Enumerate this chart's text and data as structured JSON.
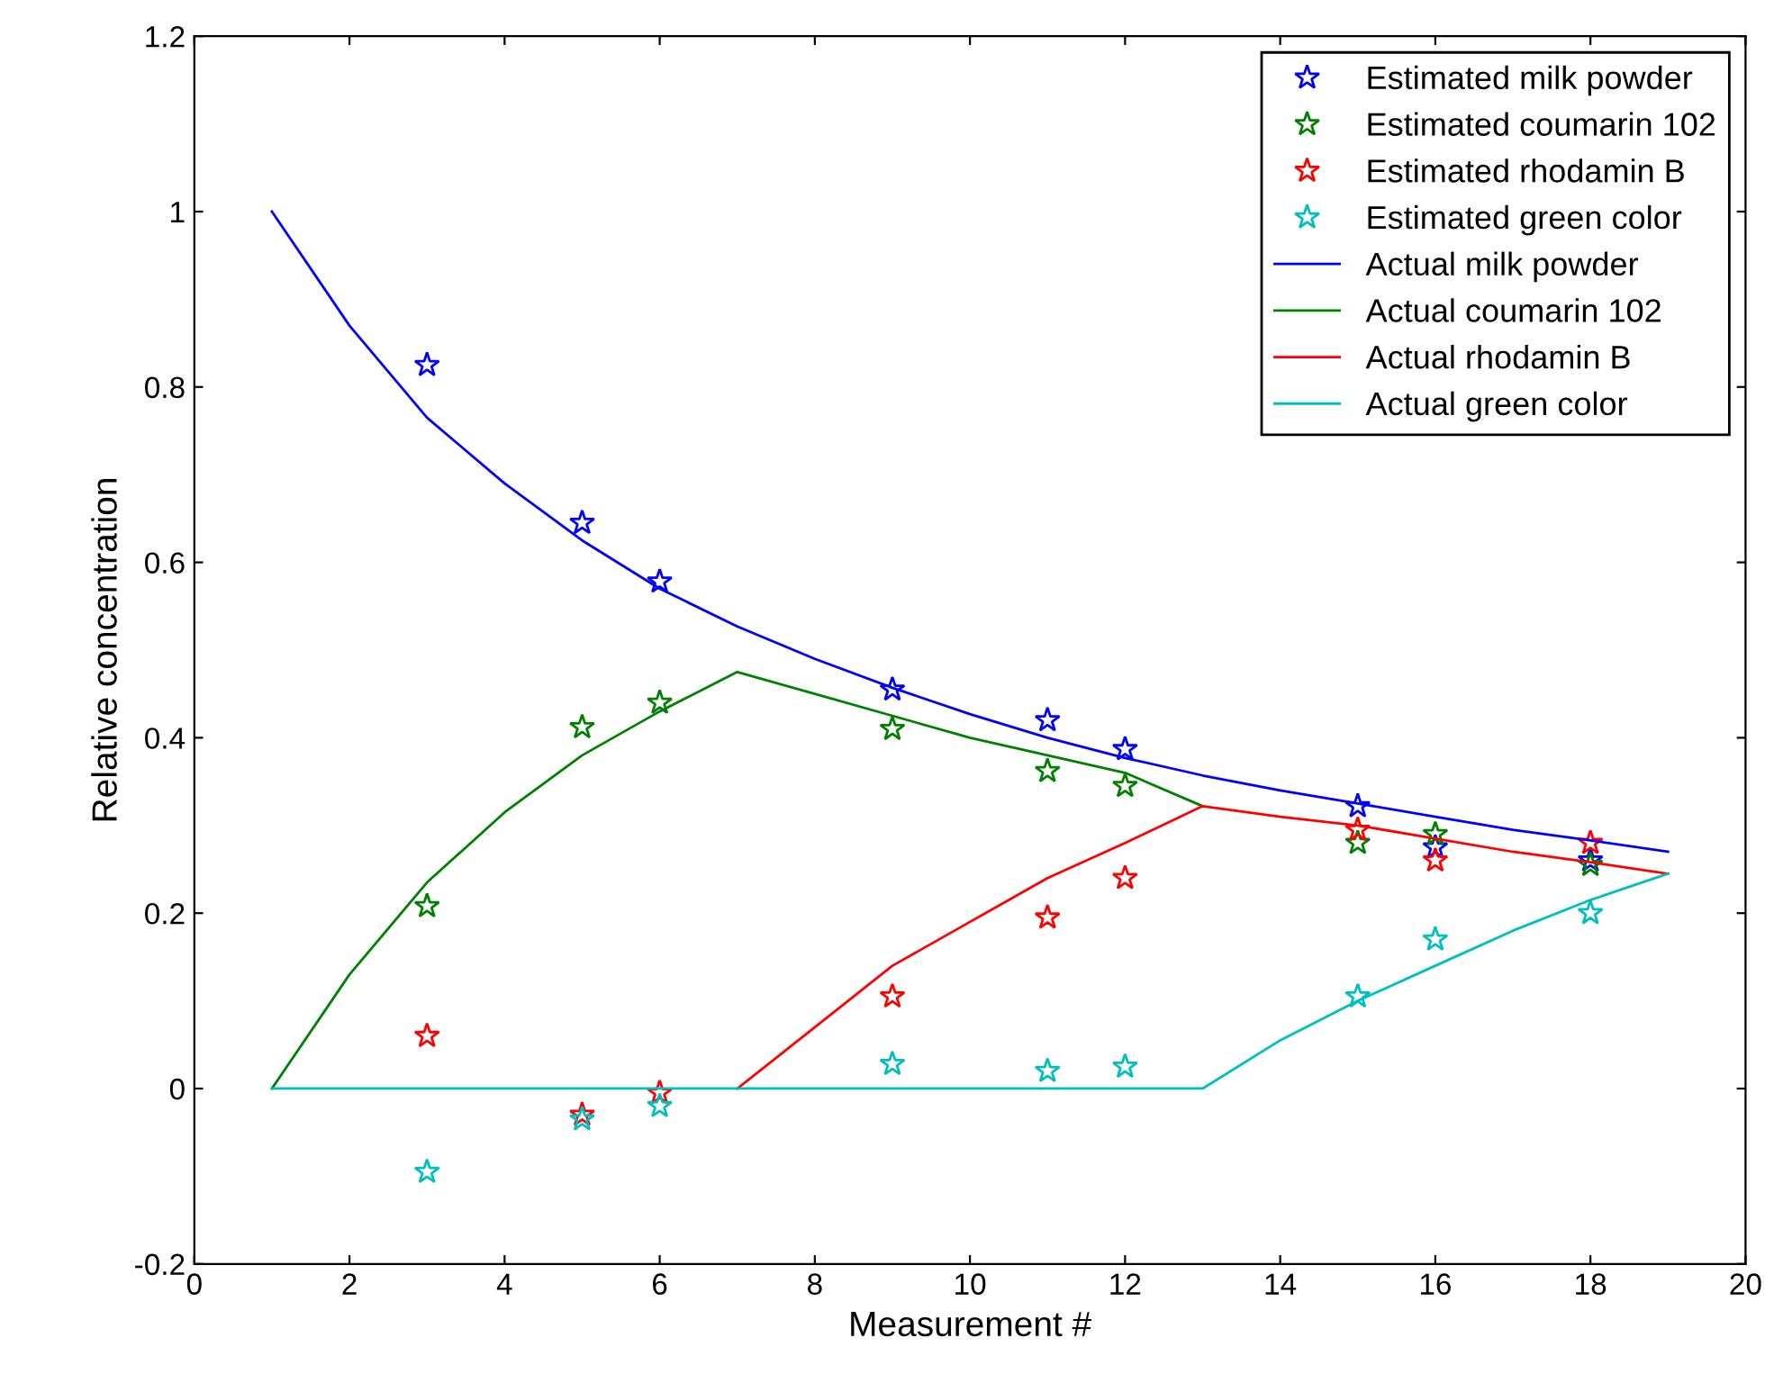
{
  "chart_data": {
    "type": "line",
    "xlabel": "Measurement #",
    "ylabel": "Relative concentration",
    "xlim": [
      0,
      20
    ],
    "ylim": [
      -0.2,
      1.2
    ],
    "xticks": [
      0,
      2,
      4,
      6,
      8,
      10,
      12,
      14,
      16,
      18,
      20
    ],
    "yticks": [
      {
        "value": -0.2,
        "label": "-0.2"
      },
      0,
      0.2,
      0.4,
      0.6,
      0.8,
      1,
      1.2
    ],
    "grid": false,
    "legend": "top right",
    "series": [
      {
        "name": "Estimated milk powder",
        "type": "scatter",
        "marker": "star",
        "color": "#0000ff",
        "x": [
          3,
          5,
          6,
          9,
          11,
          12,
          15,
          16,
          18
        ],
        "values": [
          0.825,
          0.645,
          0.578,
          0.455,
          0.42,
          0.387,
          0.322,
          0.275,
          0.26
        ]
      },
      {
        "name": "Estimated coumarin 102",
        "type": "scatter",
        "marker": "star",
        "color": "#008000",
        "x": [
          3,
          5,
          6,
          9,
          11,
          12,
          15,
          16,
          18
        ],
        "values": [
          0.208,
          0.412,
          0.44,
          0.41,
          0.362,
          0.345,
          0.28,
          0.29,
          0.255
        ]
      },
      {
        "name": "Estimated rhodamin B",
        "type": "scatter",
        "marker": "star",
        "color": "#ff0000",
        "x": [
          3,
          5,
          6,
          9,
          11,
          12,
          15,
          16,
          18
        ],
        "values": [
          0.06,
          -0.03,
          -0.005,
          0.105,
          0.195,
          0.24,
          0.295,
          0.26,
          0.28
        ]
      },
      {
        "name": "Estimated green color",
        "type": "scatter",
        "marker": "star",
        "color": "#00bfbf",
        "x": [
          3,
          5,
          6,
          9,
          11,
          12,
          15,
          16,
          18
        ],
        "values": [
          -0.095,
          -0.035,
          -0.02,
          0.028,
          0.02,
          0.025,
          0.105,
          0.17,
          0.2
        ]
      },
      {
        "name": "Actual milk powder",
        "color": "#0000ff",
        "x": [
          1,
          2,
          3,
          4,
          5,
          6,
          7,
          8,
          9,
          10,
          11,
          12,
          13,
          14,
          15,
          16,
          17,
          18,
          19
        ],
        "values": [
          1,
          0.87,
          0.765,
          0.69,
          0.625,
          0.57,
          0.527,
          0.49,
          0.457,
          0.427,
          0.4,
          0.377,
          0.357,
          0.34,
          0.325,
          0.31,
          0.295,
          0.283,
          0.27
        ]
      },
      {
        "name": "Actual coumarin 102",
        "color": "#008000",
        "x": [
          1,
          2,
          3,
          4,
          5,
          6,
          7,
          8,
          9,
          10,
          11,
          12,
          13
        ],
        "values": [
          0,
          0.13,
          0.235,
          0.315,
          0.38,
          0.43,
          0.475,
          0.45,
          0.425,
          0.4,
          0.38,
          0.36,
          0.322
        ]
      },
      {
        "name": "Actual rhodamin B",
        "color": "#ff0000",
        "x": [
          7,
          8,
          9,
          10,
          11,
          12,
          13,
          14,
          15,
          16,
          17,
          18,
          19
        ],
        "values": [
          0,
          0.07,
          0.14,
          0.19,
          0.24,
          0.28,
          0.322,
          0.31,
          0.3,
          0.285,
          0.27,
          0.258,
          0.245
        ]
      },
      {
        "name": "Actual green color",
        "color": "#00bfbf",
        "x": [
          1,
          2,
          3,
          4,
          5,
          6,
          7,
          8,
          9,
          10,
          11,
          12,
          13,
          14,
          15,
          16,
          17,
          18,
          19
        ],
        "values": [
          0,
          0,
          0,
          0,
          0,
          0,
          0,
          0,
          0,
          0,
          0,
          0,
          0,
          0.055,
          0.1,
          0.14,
          0.18,
          0.215,
          0.245
        ]
      }
    ]
  }
}
